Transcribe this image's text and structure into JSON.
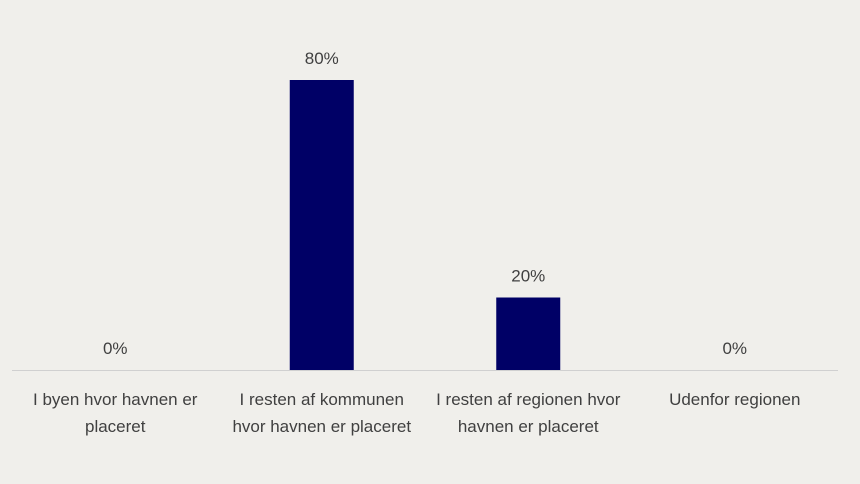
{
  "chart_data": {
    "type": "bar",
    "categories": [
      "I byen hvor havnen er placeret",
      "I resten af kommunen hvor havnen er placeret",
      "I resten af regionen hvor havnen er placeret",
      "Udenfor regionen"
    ],
    "values": [
      0,
      80,
      20,
      0
    ],
    "value_labels": [
      "0%",
      "80%",
      "20%",
      "0%"
    ],
    "color": "#000066"
  }
}
